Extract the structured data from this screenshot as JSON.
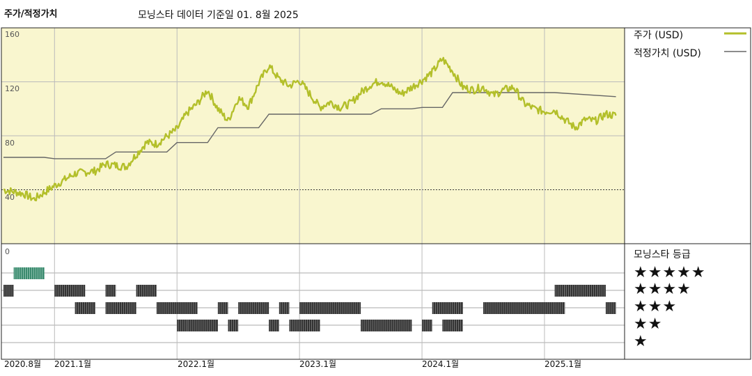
{
  "chart_data": {
    "type": "line",
    "title": "주가/적정가치",
    "subtitle": "모닝스타 데이터 기준일 01. 8월 2025",
    "x_tick_labels": [
      "2020.8월",
      "2021.1월",
      "2022.1월",
      "2023.1월",
      "2024.1월",
      "2025.1월"
    ],
    "x_range": [
      "2020-08",
      "2025-08"
    ],
    "y_ticks": [
      40,
      80,
      120,
      160
    ],
    "ylim": [
      0,
      160
    ],
    "grid": true,
    "legend_placement": "right",
    "series": [
      {
        "name": "주가 (USD)",
        "color": "#b3bf2a",
        "x": [
          "2020-08",
          "2020-10",
          "2020-11",
          "2021-01",
          "2021-03",
          "2021-05",
          "2021-06",
          "2021-08",
          "2021-09",
          "2021-10",
          "2021-11",
          "2022-01",
          "2022-02",
          "2022-03",
          "2022-04",
          "2022-05",
          "2022-06",
          "2022-07",
          "2022-08",
          "2022-09",
          "2022-10",
          "2022-11",
          "2022-12",
          "2023-01",
          "2023-02",
          "2023-03",
          "2023-04",
          "2023-05",
          "2023-06",
          "2023-07",
          "2023-08",
          "2023-09",
          "2023-10",
          "2023-11",
          "2023-12",
          "2024-01",
          "2024-02",
          "2024-03",
          "2024-04",
          "2024-05",
          "2024-06",
          "2024-07",
          "2024-08",
          "2024-09",
          "2024-10",
          "2024-11",
          "2024-12",
          "2025-01",
          "2025-02",
          "2025-03",
          "2025-04",
          "2025-05",
          "2025-06",
          "2025-07",
          "2025-08"
        ],
        "values": [
          40,
          37,
          33,
          43,
          52,
          54,
          59,
          57,
          66,
          75,
          74,
          85,
          97,
          104,
          114,
          100,
          91,
          108,
          102,
          119,
          132,
          122,
          117,
          121,
          111,
          101,
          105,
          101,
          104,
          112,
          118,
          121,
          116,
          111,
          116,
          121,
          127,
          137,
          128,
          116,
          114,
          116,
          110,
          114,
          116,
          104,
          100,
          98,
          99,
          92,
          86,
          92,
          91,
          96,
          95
        ]
      },
      {
        "name": "적정가치 (USD)",
        "color": "#666666",
        "x": [
          "2020-08",
          "2020-12",
          "2021-01",
          "2021-06",
          "2021-07",
          "2021-12",
          "2022-01",
          "2022-04",
          "2022-05",
          "2022-09",
          "2022-10",
          "2023-05",
          "2023-06",
          "2023-08",
          "2023-09",
          "2023-12",
          "2024-01",
          "2024-03",
          "2024-04",
          "2024-07",
          "2025-02",
          "2025-08"
        ],
        "values": [
          64,
          64,
          63,
          63,
          68,
          68,
          75,
          75,
          86,
          86,
          96,
          96,
          96,
          96,
          100,
          100,
          101,
          101,
          112,
          112,
          112,
          109
        ]
      }
    ]
  },
  "rating": {
    "title": "모닝스타 등급",
    "levels": [
      "★★★★★",
      "★★★★",
      "★★★",
      "★★",
      "★"
    ],
    "color_5star": "#3a8a6e",
    "color_bars": "#333333",
    "axis_zero_label": "0",
    "segments": [
      {
        "level": 5,
        "from": "2020-09",
        "to": "2020-12"
      },
      {
        "level": 4,
        "from": "2020-08",
        "to": "2020-09"
      },
      {
        "level": 4,
        "from": "2021-01",
        "to": "2021-04"
      },
      {
        "level": 4,
        "from": "2021-06",
        "to": "2021-07"
      },
      {
        "level": 4,
        "from": "2021-09",
        "to": "2021-11"
      },
      {
        "level": 4,
        "from": "2025-02",
        "to": "2025-03"
      },
      {
        "level": 4,
        "from": "2025-03",
        "to": "2025-07"
      },
      {
        "level": 3,
        "from": "2021-03",
        "to": "2021-05"
      },
      {
        "level": 3,
        "from": "2021-06",
        "to": "2021-09"
      },
      {
        "level": 3,
        "from": "2021-11",
        "to": "2022-03"
      },
      {
        "level": 3,
        "from": "2022-05",
        "to": "2022-06"
      },
      {
        "level": 3,
        "from": "2022-07",
        "to": "2022-10"
      },
      {
        "level": 3,
        "from": "2022-11",
        "to": "2022-12"
      },
      {
        "level": 3,
        "from": "2023-01",
        "to": "2023-07"
      },
      {
        "level": 3,
        "from": "2024-02",
        "to": "2024-05"
      },
      {
        "level": 3,
        "from": "2024-07",
        "to": "2025-02"
      },
      {
        "level": 3,
        "from": "2025-02",
        "to": "2025-03"
      },
      {
        "level": 3,
        "from": "2025-07",
        "to": "2025-08"
      },
      {
        "level": 2,
        "from": "2022-01",
        "to": "2022-02"
      },
      {
        "level": 2,
        "from": "2022-02",
        "to": "2022-05"
      },
      {
        "level": 2,
        "from": "2022-06",
        "to": "2022-07"
      },
      {
        "level": 2,
        "from": "2022-10",
        "to": "2022-11"
      },
      {
        "level": 2,
        "from": "2022-12",
        "to": "2023-03"
      },
      {
        "level": 2,
        "from": "2023-07",
        "to": "2023-12"
      },
      {
        "level": 2,
        "from": "2024-01",
        "to": "2024-02"
      },
      {
        "level": 2,
        "from": "2024-03",
        "to": "2024-05"
      }
    ]
  }
}
